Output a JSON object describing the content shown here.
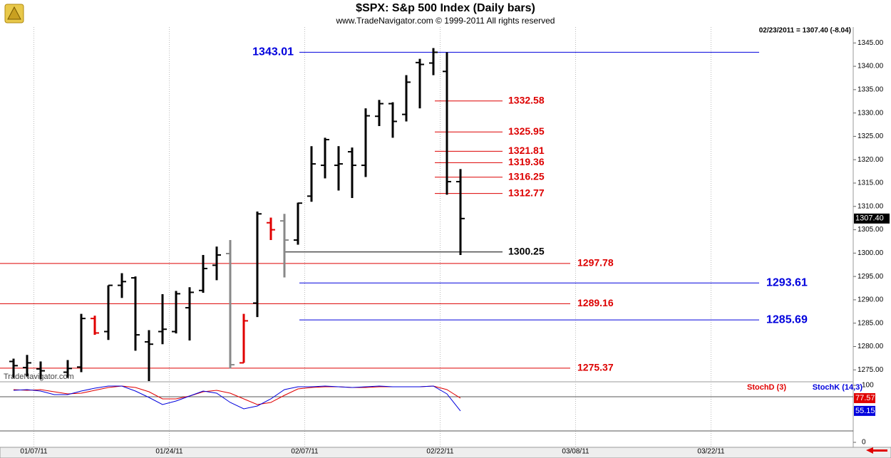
{
  "header": {
    "title": "$SPX:  S&p 500 Index  (Daily bars)",
    "subtitle": "www.TradeNavigator.com © 1999-2011 All rights reserved",
    "quote": "02/23/2011 = 1307.40 (-8.04)",
    "watermark": "TradeNavigator.com"
  },
  "chart_data": [
    {
      "type": "ohlc",
      "open": [
        1276.8,
        1275.5,
        1275.2,
        null,
        1274.5,
        1275.6,
        1286.0,
        1283.2,
        1293.1,
        1294.7,
        1281.0,
        1283.2,
        1283.2,
        1288.3,
        1292.0,
        1297.4,
        1299.9,
        1276.5,
        1289.3,
        1306.5,
        1306.9,
        1302.8,
        1312.2,
        1318.8,
        1318.8,
        1321.7,
        1318.8,
        1329.3,
        1332.0,
        1329.7,
        1340.8,
        1340.7,
        1338.9,
        1315.3
      ],
      "high": [
        1277.4,
        1278.2,
        1276.8,
        null,
        1277.1,
        1287.0,
        1286.6,
        1293.1,
        1295.7,
        1295.0,
        1283.5,
        1291.2,
        1291.9,
        1292.7,
        1299.6,
        1301.4,
        1302.8,
        1287.0,
        1308.9,
        1307.6,
        1308.4,
        1310.8,
        1322.9,
        1324.7,
        1322.9,
        1322.6,
        1331.0,
        1332.8,
        1332.3,
        1338.1,
        1341.6,
        1343.9,
        1343.0,
        1318.0
      ],
      "low": [
        1273.3,
        1273.6,
        1273.0,
        null,
        1273.3,
        1274.5,
        1282.5,
        1281.4,
        1290.4,
        1279.1,
        1271.3,
        1280.5,
        1282.8,
        1281.3,
        1291.5,
        1294.2,
        1275.3,
        1276.5,
        1286.3,
        1302.8,
        1294.8,
        1301.8,
        1311.0,
        1316.0,
        1313.4,
        1311.8,
        1316.3,
        1327.2,
        1324.7,
        1328.2,
        1331.0,
        1338.1,
        1312.5,
        1299.6
      ],
      "close": [
        1275.9,
        1276.5,
        1274.8,
        null,
        1275.3,
        1286.0,
        1282.9,
        1293.1,
        1293.9,
        1282.5,
        1280.5,
        1283.7,
        1291.3,
        1291.6,
        1296.7,
        1299.6,
        1276.1,
        1285.5,
        1308.4,
        1305.0,
        1302.8,
        1310.7,
        1319.1,
        1324.3,
        1319.1,
        1318.8,
        1329.4,
        1332.0,
        1328.2,
        1336.6,
        1340.4,
        1343.0,
        1315.3,
        1307.4
      ],
      "colors": [
        "#000000",
        "#000000",
        "#000000",
        "#000000",
        "#000000",
        "#000000",
        "#e00000",
        "#000000",
        "#000000",
        "#000000",
        "#000000",
        "#000000",
        "#000000",
        "#000000",
        "#000000",
        "#000000",
        "#888888",
        "#e00000",
        "#000000",
        "#e00000",
        "#888888",
        "#000000",
        "#000000",
        "#000000",
        "#000000",
        "#000000",
        "#000000",
        "#000000",
        "#000000",
        "#000000",
        "#000000",
        "#000000",
        "#000000",
        "#000000"
      ],
      "xlim": [
        -1,
        62
      ],
      "ylim": [
        1272.6,
        1348.4
      ],
      "xticks": [
        {
          "value": 1.5,
          "label": "01/07/11"
        },
        {
          "value": 11.5,
          "label": "01/24/11"
        },
        {
          "value": 21.5,
          "label": "02/07/11"
        },
        {
          "value": 31.5,
          "label": "02/22/11"
        },
        {
          "value": 41.5,
          "label": "03/08/11"
        },
        {
          "value": 51.5,
          "label": "03/22/11"
        }
      ],
      "yticks": [
        {
          "value": 1275,
          "label": "1275.00"
        },
        {
          "value": 1280,
          "label": "1280.00"
        },
        {
          "value": 1285,
          "label": "1285.00"
        },
        {
          "value": 1290,
          "label": "1290.00"
        },
        {
          "value": 1295,
          "label": "1295.00"
        },
        {
          "value": 1300,
          "label": "1300.00"
        },
        {
          "value": 1305,
          "label": "1305.00"
        },
        {
          "value": 1310,
          "label": "1310.00"
        },
        {
          "value": 1315,
          "label": "1315.00"
        },
        {
          "value": 1320,
          "label": "1320.00"
        },
        {
          "value": 1325,
          "label": "1325.00"
        },
        {
          "value": 1330,
          "label": "1330.00"
        },
        {
          "value": 1335,
          "label": "1335.00"
        },
        {
          "value": 1340,
          "label": "1340.00"
        },
        {
          "value": 1345,
          "label": "1345.00"
        }
      ],
      "last_value": {
        "value": 1307.4,
        "label": "1307.40"
      },
      "levels": [
        {
          "value": 1343.01,
          "color": "#0000dd"
        },
        {
          "value": 1332.58,
          "color": "#dd0000"
        },
        {
          "value": 1325.95,
          "color": "#dd0000"
        },
        {
          "value": 1321.81,
          "color": "#dd0000"
        },
        {
          "value": 1319.36,
          "color": "#dd0000"
        },
        {
          "value": 1316.25,
          "color": "#dd0000"
        },
        {
          "value": 1312.77,
          "color": "#dd0000"
        },
        {
          "value": 1300.25,
          "color": "#000000"
        },
        {
          "value": 1297.78,
          "color": "#dd0000"
        },
        {
          "value": 1293.61,
          "color": "#0000dd"
        },
        {
          "value": 1289.16,
          "color": "#dd0000"
        },
        {
          "value": 1285.69,
          "color": "#0000dd"
        },
        {
          "value": 1275.37,
          "color": "#dd0000"
        }
      ]
    },
    {
      "type": "line",
      "xlim": [
        -1,
        62
      ],
      "ylim": [
        -8.75,
        103.75
      ],
      "yticks": [
        100,
        0
      ],
      "bands": [
        80,
        20
      ],
      "series": [
        {
          "name": "StochD (3)",
          "color": "#e00000",
          "values": [
            92.5,
            91.25,
            92.5,
            88.75,
            85,
            86.25,
            91.25,
            96.25,
            98.75,
            96.25,
            88.75,
            76.25,
            76.25,
            81.25,
            88.75,
            91.25,
            86.25,
            76.25,
            66.25,
            70,
            82.5,
            93.75,
            96.25,
            97.5,
            97.5,
            96.25,
            96.25,
            97.5,
            97.5,
            97.5,
            97.5,
            98.75,
            92.5,
            77.57
          ]
        },
        {
          "name": "StochK (14,3)",
          "color": "#0000dd",
          "values": [
            91.25,
            92.5,
            90,
            83.75,
            83.75,
            90,
            95,
            98.75,
            98.75,
            90,
            78.75,
            66.25,
            72.5,
            81.25,
            90,
            86.25,
            70,
            58.75,
            63.75,
            76.25,
            92.5,
            97.5,
            97.5,
            98.75,
            97.5,
            96.25,
            97.5,
            98.75,
            97.5,
            97.5,
            97.5,
            98.75,
            85,
            55.15
          ]
        }
      ]
    }
  ]
}
